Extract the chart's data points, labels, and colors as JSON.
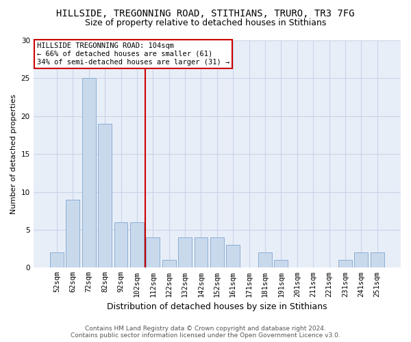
{
  "title": "HILLSIDE, TREGONNING ROAD, STITHIANS, TRURO, TR3 7FG",
  "subtitle": "Size of property relative to detached houses in Stithians",
  "xlabel": "Distribution of detached houses by size in Stithians",
  "ylabel": "Number of detached properties",
  "categories": [
    "52sqm",
    "62sqm",
    "72sqm",
    "82sqm",
    "92sqm",
    "102sqm",
    "112sqm",
    "122sqm",
    "132sqm",
    "142sqm",
    "152sqm",
    "161sqm",
    "171sqm",
    "181sqm",
    "191sqm",
    "201sqm",
    "211sqm",
    "221sqm",
    "231sqm",
    "241sqm",
    "251sqm"
  ],
  "values": [
    2,
    9,
    25,
    19,
    6,
    6,
    4,
    1,
    4,
    4,
    4,
    3,
    0,
    2,
    1,
    0,
    0,
    0,
    1,
    2,
    2
  ],
  "bar_color": "#c9d9ec",
  "bar_edge_color": "#8aaed4",
  "vline_x": 5.5,
  "vline_color": "#cc0000",
  "annotation_title": "HILLSIDE TREGONNING ROAD: 104sqm",
  "annotation_line2": "← 66% of detached houses are smaller (61)",
  "annotation_line3": "34% of semi-detached houses are larger (31) →",
  "annotation_box_color": "#ffffff",
  "annotation_box_edge": "#cc0000",
  "ylim": [
    0,
    30
  ],
  "yticks": [
    0,
    5,
    10,
    15,
    20,
    25,
    30
  ],
  "grid_color": "#c8d4e8",
  "background_color": "#ffffff",
  "plot_bg_color": "#e8eef8",
  "footer_line1": "Contains HM Land Registry data © Crown copyright and database right 2024.",
  "footer_line2": "Contains public sector information licensed under the Open Government Licence v3.0.",
  "title_fontsize": 10,
  "subtitle_fontsize": 9,
  "xlabel_fontsize": 9,
  "ylabel_fontsize": 8,
  "tick_fontsize": 7.5,
  "ann_fontsize": 7.5,
  "footer_fontsize": 6.5
}
